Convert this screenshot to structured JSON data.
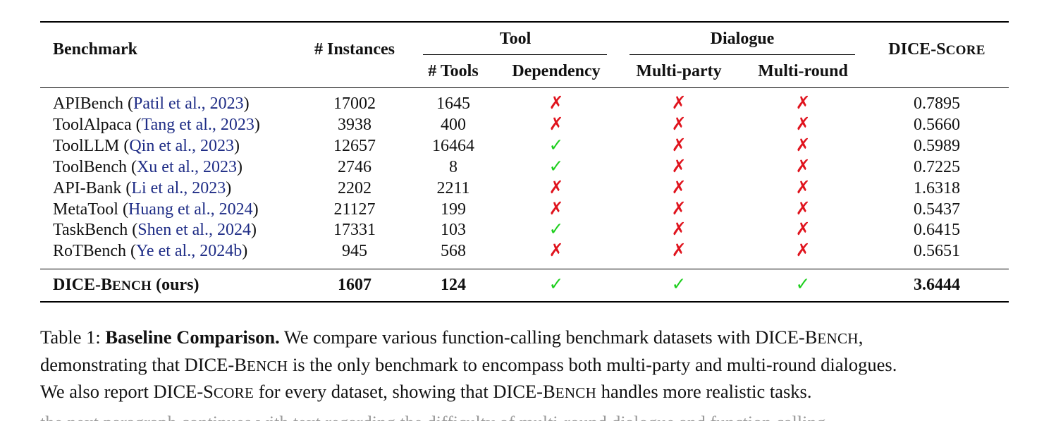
{
  "table": {
    "headers": {
      "benchmark": "Benchmark",
      "instances": "# Instances",
      "tool_group": "Tool",
      "tools": "# Tools",
      "dependency": "Dependency",
      "dialogue_group": "Dialogue",
      "multi_party": "Multi-party",
      "multi_round": "Multi-round",
      "score_prefix": "DICE-S",
      "score_suffix": "CORE"
    },
    "rows": [
      {
        "name": "APIBench",
        "open": " (",
        "cite": "Patil et al., 2023",
        "close": ")",
        "instances": "17002",
        "tools": "1645",
        "dependency": "✗",
        "multi_party": "✗",
        "multi_round": "✗",
        "score": "0.7895"
      },
      {
        "name": "ToolAlpaca",
        "open": " (",
        "cite": "Tang et al., 2023",
        "close": ")",
        "instances": "3938",
        "tools": "400",
        "dependency": "✗",
        "multi_party": "✗",
        "multi_round": "✗",
        "score": "0.5660"
      },
      {
        "name": "ToolLLM",
        "open": " (",
        "cite": "Qin et al., 2023",
        "close": ")",
        "instances": "12657",
        "tools": "16464",
        "dependency": "✓",
        "multi_party": "✗",
        "multi_round": "✗",
        "score": "0.5989"
      },
      {
        "name": "ToolBench",
        "open": " (",
        "cite": "Xu et al., 2023",
        "close": ")",
        "instances": "2746",
        "tools": "8",
        "dependency": "✓",
        "multi_party": "✗",
        "multi_round": "✗",
        "score": "0.7225"
      },
      {
        "name": "API-Bank",
        "open": " (",
        "cite": "Li et al., 2023",
        "close": ")",
        "instances": "2202",
        "tools": "2211",
        "dependency": "✗",
        "multi_party": "✗",
        "multi_round": "✗",
        "score": "1.6318"
      },
      {
        "name": "MetaTool",
        "open": " (",
        "cite": "Huang et al., 2024",
        "close": ")",
        "instances": "21127",
        "tools": "199",
        "dependency": "✗",
        "multi_party": "✗",
        "multi_round": "✗",
        "score": "0.5437"
      },
      {
        "name": "TaskBench",
        "open": " (",
        "cite": "Shen et al., 2024",
        "close": ")",
        "instances": "17331",
        "tools": "103",
        "dependency": "✓",
        "multi_party": "✗",
        "multi_round": "✗",
        "score": "0.6415"
      },
      {
        "name": "RoTBench",
        "open": " (",
        "cite": "Ye et al., 2024b",
        "close": ")",
        "instances": "945",
        "tools": "568",
        "dependency": "✗",
        "multi_party": "✗",
        "multi_round": "✗",
        "score": "0.5651"
      }
    ],
    "ours": {
      "name_prefix": "DICE-B",
      "name_suffix": "ENCH",
      "name_tail": " (ours)",
      "instances": "1607",
      "tools": "124",
      "dependency": "✓",
      "multi_party": "✓",
      "multi_round": "✓",
      "score": "3.6444"
    }
  },
  "caption": {
    "label": "Table 1: ",
    "bold": "Baseline Comparison.",
    "line1": " We compare various function-calling benchmark datasets with DICE-B",
    "line1_sc": "ENCH",
    "line1_end": ",",
    "line2_a": "demonstrating that DICE-B",
    "line2_sc": "ENCH",
    "line2_b": " is the only benchmark to encompass both multi-party and multi-round dialogues.",
    "line3_a": "We also report DICE-S",
    "line3_sc1": "CORE",
    "line3_b": " for every dataset, showing that DICE-B",
    "line3_sc2": "ENCH",
    "line3_c": " handles more realistic tasks."
  },
  "truncated_text": "the next paragraph continues with text regarding the difficulty of multi-round dialogue and function calling"
}
